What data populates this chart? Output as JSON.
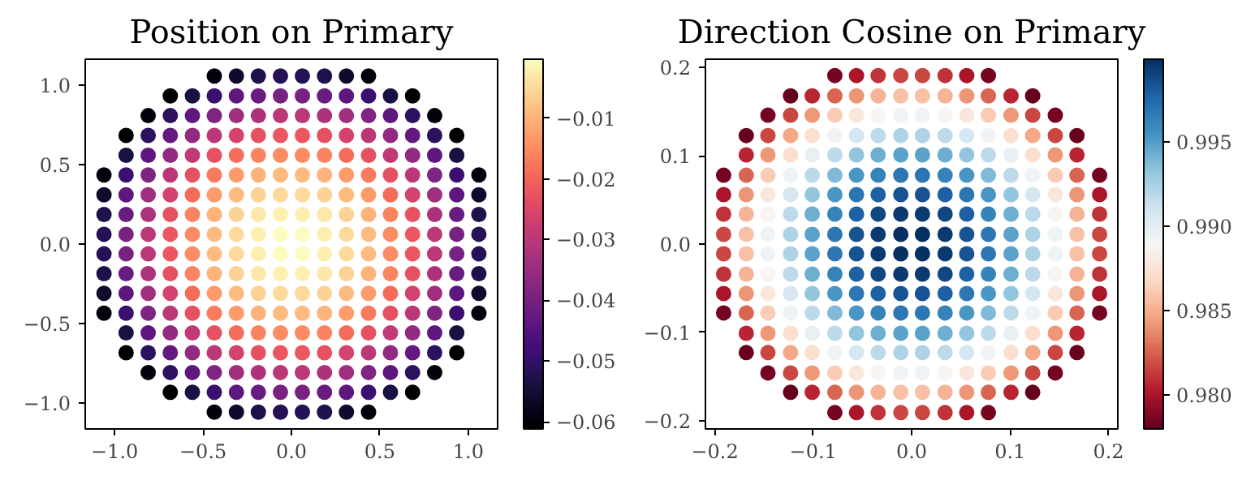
{
  "chart_data": [
    {
      "type": "scatter",
      "title": "Position on Primary",
      "marker": "circle",
      "xlim": [
        -1.166,
        1.166
      ],
      "ylim": [
        -1.166,
        1.166
      ],
      "xticks": [
        {
          "value": -1.0,
          "label": "−1.0"
        },
        {
          "value": -0.5,
          "label": "−0.5"
        },
        {
          "value": 0.0,
          "label": "0.0"
        },
        {
          "value": 0.5,
          "label": "0.5"
        },
        {
          "value": 1.0,
          "label": "1.0"
        }
      ],
      "yticks": [
        {
          "value": -1.0,
          "label": "−1.0"
        },
        {
          "value": -0.5,
          "label": "−0.5"
        },
        {
          "value": 0.0,
          "label": "0.0"
        },
        {
          "value": 0.5,
          "label": "0.5"
        },
        {
          "value": 1.0,
          "label": "1.0"
        }
      ],
      "clim": [
        -0.0612,
        -0.0003
      ],
      "cticks": [
        {
          "value": -0.06,
          "label": "−0.06"
        },
        {
          "value": -0.05,
          "label": "−0.05"
        },
        {
          "value": -0.04,
          "label": "−0.04"
        },
        {
          "value": -0.03,
          "label": "−0.03"
        },
        {
          "value": -0.02,
          "label": "−0.02"
        },
        {
          "value": -0.01,
          "label": "−0.01"
        }
      ],
      "x": [
        -0.436,
        -0.311,
        -0.187,
        -0.062,
        0.062,
        0.187,
        0.311,
        0.436,
        -0.685,
        -0.56,
        -0.436,
        -0.311,
        -0.187,
        -0.062,
        0.062,
        0.187,
        0.311,
        0.436,
        0.56,
        0.685,
        -0.81,
        -0.685,
        -0.56,
        -0.436,
        -0.311,
        -0.187,
        -0.062,
        0.062,
        0.187,
        0.311,
        0.436,
        0.56,
        0.685,
        0.81,
        -0.935,
        -0.81,
        -0.685,
        -0.56,
        -0.436,
        -0.311,
        -0.187,
        -0.062,
        0.062,
        0.187,
        0.311,
        0.436,
        0.56,
        0.685,
        0.81,
        0.935,
        -0.935,
        -0.81,
        -0.685,
        -0.56,
        -0.436,
        -0.311,
        -0.187,
        -0.062,
        0.062,
        0.187,
        0.311,
        0.436,
        0.56,
        0.685,
        0.81,
        0.935,
        -1.06,
        -0.935,
        -0.81,
        -0.685,
        -0.56,
        -0.436,
        -0.311,
        -0.187,
        -0.062,
        0.062,
        0.187,
        0.311,
        0.436,
        0.56,
        0.685,
        0.81,
        0.935,
        1.06,
        -1.06,
        -0.935,
        -0.81,
        -0.685,
        -0.56,
        -0.436,
        -0.311,
        -0.187,
        -0.062,
        0.062,
        0.187,
        0.311,
        0.436,
        0.56,
        0.685,
        0.81,
        0.935,
        1.06,
        -1.06,
        -0.935,
        -0.81,
        -0.685,
        -0.56,
        -0.436,
        -0.311,
        -0.187,
        -0.062,
        0.062,
        0.187,
        0.311,
        0.436,
        0.56,
        0.685,
        0.81,
        0.935,
        1.06,
        -1.06,
        -0.935,
        -0.81,
        -0.685,
        -0.56,
        -0.436,
        -0.311,
        -0.187,
        -0.062,
        0.062,
        0.187,
        0.311,
        0.436,
        0.56,
        0.685,
        0.81,
        0.935,
        1.06,
        -1.06,
        -0.935,
        -0.81,
        -0.685,
        -0.56,
        -0.436,
        -0.311,
        -0.187,
        -0.062,
        0.062,
        0.187,
        0.311,
        0.436,
        0.56,
        0.685,
        0.81,
        0.935,
        1.06,
        -1.06,
        -0.935,
        -0.81,
        -0.685,
        -0.56,
        -0.436,
        -0.311,
        -0.187,
        -0.062,
        0.062,
        0.187,
        0.311,
        0.436,
        0.56,
        0.685,
        0.81,
        0.935,
        1.06,
        -1.06,
        -0.935,
        -0.81,
        -0.685,
        -0.56,
        -0.436,
        -0.311,
        -0.187,
        -0.062,
        0.062,
        0.187,
        0.311,
        0.436,
        0.56,
        0.685,
        0.81,
        0.935,
        1.06,
        -1.06,
        -0.935,
        -0.81,
        -0.685,
        -0.56,
        -0.436,
        -0.311,
        -0.187,
        -0.062,
        0.062,
        0.187,
        0.311,
        0.436,
        0.56,
        0.685,
        0.81,
        0.935,
        1.06,
        -0.935,
        -0.81,
        -0.685,
        -0.56,
        -0.436,
        -0.311,
        -0.187,
        -0.062,
        0.062,
        0.187,
        0.311,
        0.436,
        0.56,
        0.685,
        0.81,
        0.935,
        -0.935,
        -0.81,
        -0.685,
        -0.56,
        -0.436,
        -0.311,
        -0.187,
        -0.062,
        0.062,
        0.187,
        0.311,
        0.436,
        0.56,
        0.685,
        0.81,
        0.935,
        -0.81,
        -0.685,
        -0.56,
        -0.436,
        -0.311,
        -0.187,
        -0.062,
        0.062,
        0.187,
        0.311,
        0.436,
        0.56,
        0.685,
        0.81,
        -0.685,
        -0.56,
        -0.436,
        -0.311,
        -0.187,
        -0.062,
        0.062,
        0.187,
        0.311,
        0.436,
        0.56,
        0.685,
        -0.436,
        -0.311,
        -0.187,
        -0.062,
        0.062,
        0.187,
        0.311,
        0.436
      ],
      "values": [
        1.06,
        1.06,
        1.06,
        1.06,
        1.06,
        1.06,
        1.06,
        1.06,
        0.935,
        0.935,
        0.935,
        0.935,
        0.935,
        0.935,
        0.935,
        0.935,
        0.935,
        0.935,
        0.935,
        0.935,
        0.81,
        0.81,
        0.81,
        0.81,
        0.81,
        0.81,
        0.81,
        0.81,
        0.81,
        0.81,
        0.81,
        0.81,
        0.81,
        0.81,
        0.685,
        0.685,
        0.685,
        0.685,
        0.685,
        0.685,
        0.685,
        0.685,
        0.685,
        0.685,
        0.685,
        0.685,
        0.685,
        0.685,
        0.685,
        0.685,
        0.56,
        0.56,
        0.56,
        0.56,
        0.56,
        0.56,
        0.56,
        0.56,
        0.56,
        0.56,
        0.56,
        0.56,
        0.56,
        0.56,
        0.56,
        0.56,
        0.436,
        0.436,
        0.436,
        0.436,
        0.436,
        0.436,
        0.436,
        0.436,
        0.436,
        0.436,
        0.436,
        0.436,
        0.436,
        0.436,
        0.436,
        0.436,
        0.436,
        0.436,
        0.311,
        0.311,
        0.311,
        0.311,
        0.311,
        0.311,
        0.311,
        0.311,
        0.311,
        0.311,
        0.311,
        0.311,
        0.311,
        0.311,
        0.311,
        0.311,
        0.311,
        0.311,
        0.187,
        0.187,
        0.187,
        0.187,
        0.187,
        0.187,
        0.187,
        0.187,
        0.187,
        0.187,
        0.187,
        0.187,
        0.187,
        0.187,
        0.187,
        0.187,
        0.187,
        0.187,
        0.062,
        0.062,
        0.062,
        0.062,
        0.062,
        0.062,
        0.062,
        0.062,
        0.062,
        0.062,
        0.062,
        0.062,
        0.062,
        0.062,
        0.062,
        0.062,
        0.062,
        0.062,
        -0.062,
        -0.062,
        -0.062,
        -0.062,
        -0.062,
        -0.062,
        -0.062,
        -0.062,
        -0.062,
        -0.062,
        -0.062,
        -0.062,
        -0.062,
        -0.062,
        -0.062,
        -0.062,
        -0.062,
        -0.062,
        -0.187,
        -0.187,
        -0.187,
        -0.187,
        -0.187,
        -0.187,
        -0.187,
        -0.187,
        -0.187,
        -0.187,
        -0.187,
        -0.187,
        -0.187,
        -0.187,
        -0.187,
        -0.187,
        -0.187,
        -0.187,
        -0.311,
        -0.311,
        -0.311,
        -0.311,
        -0.311,
        -0.311,
        -0.311,
        -0.311,
        -0.311,
        -0.311,
        -0.311,
        -0.311,
        -0.311,
        -0.311,
        -0.311,
        -0.311,
        -0.311,
        -0.311,
        -0.436,
        -0.436,
        -0.436,
        -0.436,
        -0.436,
        -0.436,
        -0.436,
        -0.436,
        -0.436,
        -0.436,
        -0.436,
        -0.436,
        -0.436,
        -0.436,
        -0.436,
        -0.436,
        -0.436,
        -0.436,
        -0.56,
        -0.56,
        -0.56,
        -0.56,
        -0.56,
        -0.56,
        -0.56,
        -0.56,
        -0.56,
        -0.56,
        -0.56,
        -0.56,
        -0.56,
        -0.56,
        -0.56,
        -0.56,
        -0.685,
        -0.685,
        -0.685,
        -0.685,
        -0.685,
        -0.685,
        -0.685,
        -0.685,
        -0.685,
        -0.685,
        -0.685,
        -0.685,
        -0.685,
        -0.685,
        -0.685,
        -0.685,
        -0.81,
        -0.81,
        -0.81,
        -0.81,
        -0.81,
        -0.81,
        -0.81,
        -0.81,
        -0.81,
        -0.81,
        -0.81,
        -0.81,
        -0.81,
        -0.81,
        -0.935,
        -0.935,
        -0.935,
        -0.935,
        -0.935,
        -0.935,
        -0.935,
        -0.935,
        -0.935,
        -0.935,
        -0.935,
        -0.935,
        -1.06,
        -1.06,
        -1.06,
        -1.06,
        -1.06,
        -1.06,
        -1.06,
        -1.06
      ],
      "cvalues": [
        -0.06,
        -0.056,
        -0.053,
        -0.052,
        -0.052,
        -0.053,
        -0.056,
        -0.06,
        -0.061,
        -0.054,
        -0.049,
        -0.044,
        -0.042,
        -0.04,
        -0.04,
        -0.042,
        -0.044,
        -0.049,
        -0.054,
        -0.061,
        -0.06,
        -0.051,
        -0.044,
        -0.039,
        -0.034,
        -0.032,
        -0.03,
        -0.03,
        -0.032,
        -0.034,
        -0.039,
        -0.044,
        -0.051,
        -0.06,
        -0.061,
        -0.051,
        -0.043,
        -0.036,
        -0.03,
        -0.026,
        -0.023,
        -0.022,
        -0.022,
        -0.023,
        -0.026,
        -0.03,
        -0.036,
        -0.043,
        -0.051,
        -0.061,
        -0.054,
        -0.044,
        -0.036,
        -0.029,
        -0.023,
        -0.019,
        -0.016,
        -0.015,
        -0.015,
        -0.016,
        -0.019,
        -0.023,
        -0.029,
        -0.036,
        -0.044,
        -0.054,
        -0.06,
        -0.049,
        -0.039,
        -0.03,
        -0.023,
        -0.017,
        -0.013,
        -0.01,
        -0.009,
        -0.009,
        -0.01,
        -0.013,
        -0.017,
        -0.023,
        -0.03,
        -0.039,
        -0.049,
        -0.06,
        -0.056,
        -0.044,
        -0.034,
        -0.026,
        -0.019,
        -0.013,
        -0.009,
        -0.006,
        -0.005,
        -0.005,
        -0.006,
        -0.009,
        -0.013,
        -0.019,
        -0.026,
        -0.034,
        -0.044,
        -0.056,
        -0.053,
        -0.042,
        -0.032,
        -0.023,
        -0.016,
        -0.01,
        -0.006,
        -0.003,
        -0.002,
        -0.002,
        -0.003,
        -0.006,
        -0.01,
        -0.016,
        -0.023,
        -0.032,
        -0.042,
        -0.053,
        -0.052,
        -0.04,
        -0.03,
        -0.022,
        -0.015,
        -0.009,
        -0.005,
        -0.002,
        -0.0003,
        -0.0003,
        -0.002,
        -0.005,
        -0.009,
        -0.015,
        -0.022,
        -0.03,
        -0.04,
        -0.052,
        -0.052,
        -0.04,
        -0.03,
        -0.022,
        -0.015,
        -0.009,
        -0.005,
        -0.002,
        -0.0003,
        -0.0003,
        -0.002,
        -0.005,
        -0.009,
        -0.015,
        -0.022,
        -0.03,
        -0.04,
        -0.052,
        -0.053,
        -0.042,
        -0.032,
        -0.023,
        -0.016,
        -0.01,
        -0.006,
        -0.003,
        -0.002,
        -0.002,
        -0.003,
        -0.006,
        -0.01,
        -0.016,
        -0.023,
        -0.032,
        -0.042,
        -0.053,
        -0.056,
        -0.044,
        -0.034,
        -0.026,
        -0.019,
        -0.013,
        -0.009,
        -0.006,
        -0.005,
        -0.005,
        -0.006,
        -0.009,
        -0.013,
        -0.019,
        -0.026,
        -0.034,
        -0.044,
        -0.056,
        -0.06,
        -0.049,
        -0.039,
        -0.03,
        -0.023,
        -0.017,
        -0.013,
        -0.01,
        -0.009,
        -0.009,
        -0.01,
        -0.013,
        -0.017,
        -0.023,
        -0.03,
        -0.039,
        -0.049,
        -0.06,
        -0.054,
        -0.044,
        -0.036,
        -0.029,
        -0.023,
        -0.019,
        -0.016,
        -0.015,
        -0.015,
        -0.016,
        -0.019,
        -0.023,
        -0.029,
        -0.036,
        -0.044,
        -0.054,
        -0.061,
        -0.051,
        -0.043,
        -0.036,
        -0.03,
        -0.026,
        -0.023,
        -0.022,
        -0.022,
        -0.023,
        -0.026,
        -0.03,
        -0.036,
        -0.043,
        -0.051,
        -0.061,
        -0.06,
        -0.051,
        -0.044,
        -0.039,
        -0.034,
        -0.032,
        -0.03,
        -0.03,
        -0.032,
        -0.034,
        -0.039,
        -0.044,
        -0.051,
        -0.06,
        -0.061,
        -0.054,
        -0.049,
        -0.044,
        -0.042,
        -0.04,
        -0.04,
        -0.042,
        -0.044,
        -0.049,
        -0.054,
        -0.061,
        -0.06,
        -0.056,
        -0.053,
        -0.052,
        -0.052,
        -0.053,
        -0.056,
        -0.06
      ]
    },
    {
      "type": "scatter",
      "title": "Direction Cosine on Primary",
      "marker": "circle",
      "xlim": [
        -0.2095,
        0.2095
      ],
      "ylim": [
        -0.2095,
        0.2095
      ],
      "xticks": [
        {
          "value": -0.2,
          "label": "−0.2"
        },
        {
          "value": -0.1,
          "label": "−0.1"
        },
        {
          "value": 0.0,
          "label": "0.0"
        },
        {
          "value": 0.1,
          "label": "0.1"
        },
        {
          "value": 0.2,
          "label": "0.2"
        }
      ],
      "yticks": [
        {
          "value": -0.2,
          "label": "−0.2"
        },
        {
          "value": -0.1,
          "label": "−0.1"
        },
        {
          "value": 0.0,
          "label": "0.0"
        },
        {
          "value": 0.1,
          "label": "0.1"
        },
        {
          "value": 0.2,
          "label": "0.2"
        }
      ],
      "clim": [
        0.978,
        0.9999
      ],
      "cticks": [
        {
          "value": 0.98,
          "label": "0.980"
        },
        {
          "value": 0.985,
          "label": "0.985"
        },
        {
          "value": 0.99,
          "label": "0.990"
        },
        {
          "value": 0.995,
          "label": "0.995"
        }
      ],
      "x": [
        -0.078,
        -0.056,
        -0.034,
        -0.011,
        0.011,
        0.034,
        0.056,
        0.078,
        -0.123,
        -0.101,
        -0.078,
        -0.056,
        -0.034,
        -0.011,
        0.011,
        0.034,
        0.056,
        0.078,
        0.101,
        0.123,
        -0.146,
        -0.123,
        -0.101,
        -0.078,
        -0.056,
        -0.034,
        -0.011,
        0.011,
        0.034,
        0.056,
        0.078,
        0.101,
        0.123,
        0.146,
        -0.168,
        -0.146,
        -0.123,
        -0.101,
        -0.078,
        -0.056,
        -0.034,
        -0.011,
        0.011,
        0.034,
        0.056,
        0.078,
        0.101,
        0.123,
        0.146,
        0.168,
        -0.168,
        -0.146,
        -0.123,
        -0.101,
        -0.078,
        -0.056,
        -0.034,
        -0.011,
        0.011,
        0.034,
        0.056,
        0.078,
        0.101,
        0.123,
        0.146,
        0.168,
        -0.191,
        -0.168,
        -0.146,
        -0.123,
        -0.101,
        -0.078,
        -0.056,
        -0.034,
        -0.011,
        0.011,
        0.034,
        0.056,
        0.078,
        0.101,
        0.123,
        0.146,
        0.168,
        0.191,
        -0.191,
        -0.168,
        -0.146,
        -0.123,
        -0.101,
        -0.078,
        -0.056,
        -0.034,
        -0.011,
        0.011,
        0.034,
        0.056,
        0.078,
        0.101,
        0.123,
        0.146,
        0.168,
        0.191,
        -0.191,
        -0.168,
        -0.146,
        -0.123,
        -0.101,
        -0.078,
        -0.056,
        -0.034,
        -0.011,
        0.011,
        0.034,
        0.056,
        0.078,
        0.101,
        0.123,
        0.146,
        0.168,
        0.191,
        -0.191,
        -0.168,
        -0.146,
        -0.123,
        -0.101,
        -0.078,
        -0.056,
        -0.034,
        -0.011,
        0.011,
        0.034,
        0.056,
        0.078,
        0.101,
        0.123,
        0.146,
        0.168,
        0.191,
        -0.191,
        -0.168,
        -0.146,
        -0.123,
        -0.101,
        -0.078,
        -0.056,
        -0.034,
        -0.011,
        0.011,
        0.034,
        0.056,
        0.078,
        0.101,
        0.123,
        0.146,
        0.168,
        0.191,
        -0.191,
        -0.168,
        -0.146,
        -0.123,
        -0.101,
        -0.078,
        -0.056,
        -0.034,
        -0.011,
        0.011,
        0.034,
        0.056,
        0.078,
        0.101,
        0.123,
        0.146,
        0.168,
        0.191,
        -0.191,
        -0.168,
        -0.146,
        -0.123,
        -0.101,
        -0.078,
        -0.056,
        -0.034,
        -0.011,
        0.011,
        0.034,
        0.056,
        0.078,
        0.101,
        0.123,
        0.146,
        0.168,
        0.191,
        -0.191,
        -0.168,
        -0.146,
        -0.123,
        -0.101,
        -0.078,
        -0.056,
        -0.034,
        -0.011,
        0.011,
        0.034,
        0.056,
        0.078,
        0.101,
        0.123,
        0.146,
        0.168,
        0.191,
        -0.168,
        -0.146,
        -0.123,
        -0.101,
        -0.078,
        -0.056,
        -0.034,
        -0.011,
        0.011,
        0.034,
        0.056,
        0.078,
        0.101,
        0.123,
        0.146,
        0.168,
        -0.168,
        -0.146,
        -0.123,
        -0.101,
        -0.078,
        -0.056,
        -0.034,
        -0.011,
        0.011,
        0.034,
        0.056,
        0.078,
        0.101,
        0.123,
        0.146,
        0.168,
        -0.146,
        -0.123,
        -0.101,
        -0.078,
        -0.056,
        -0.034,
        -0.011,
        0.011,
        0.034,
        0.056,
        0.078,
        0.101,
        0.123,
        0.146,
        -0.123,
        -0.101,
        -0.078,
        -0.056,
        -0.034,
        -0.011,
        0.011,
        0.034,
        0.056,
        0.078,
        0.101,
        0.123,
        -0.078,
        -0.056,
        -0.034,
        -0.011,
        0.011,
        0.034,
        0.056,
        0.078
      ],
      "values": [
        0.191,
        0.191,
        0.191,
        0.191,
        0.191,
        0.191,
        0.191,
        0.191,
        0.168,
        0.168,
        0.168,
        0.168,
        0.168,
        0.168,
        0.168,
        0.168,
        0.168,
        0.168,
        0.168,
        0.168,
        0.146,
        0.146,
        0.146,
        0.146,
        0.146,
        0.146,
        0.146,
        0.146,
        0.146,
        0.146,
        0.146,
        0.146,
        0.146,
        0.146,
        0.123,
        0.123,
        0.123,
        0.123,
        0.123,
        0.123,
        0.123,
        0.123,
        0.123,
        0.123,
        0.123,
        0.123,
        0.123,
        0.123,
        0.123,
        0.123,
        0.101,
        0.101,
        0.101,
        0.101,
        0.101,
        0.101,
        0.101,
        0.101,
        0.101,
        0.101,
        0.101,
        0.101,
        0.101,
        0.101,
        0.101,
        0.101,
        0.078,
        0.078,
        0.078,
        0.078,
        0.078,
        0.078,
        0.078,
        0.078,
        0.078,
        0.078,
        0.078,
        0.078,
        0.078,
        0.078,
        0.078,
        0.078,
        0.078,
        0.078,
        0.056,
        0.056,
        0.056,
        0.056,
        0.056,
        0.056,
        0.056,
        0.056,
        0.056,
        0.056,
        0.056,
        0.056,
        0.056,
        0.056,
        0.056,
        0.056,
        0.056,
        0.056,
        0.034,
        0.034,
        0.034,
        0.034,
        0.034,
        0.034,
        0.034,
        0.034,
        0.034,
        0.034,
        0.034,
        0.034,
        0.034,
        0.034,
        0.034,
        0.034,
        0.034,
        0.034,
        0.011,
        0.011,
        0.011,
        0.011,
        0.011,
        0.011,
        0.011,
        0.011,
        0.011,
        0.011,
        0.011,
        0.011,
        0.011,
        0.011,
        0.011,
        0.011,
        0.011,
        0.011,
        -0.011,
        -0.011,
        -0.011,
        -0.011,
        -0.011,
        -0.011,
        -0.011,
        -0.011,
        -0.011,
        -0.011,
        -0.011,
        -0.011,
        -0.011,
        -0.011,
        -0.011,
        -0.011,
        -0.011,
        -0.011,
        -0.034,
        -0.034,
        -0.034,
        -0.034,
        -0.034,
        -0.034,
        -0.034,
        -0.034,
        -0.034,
        -0.034,
        -0.034,
        -0.034,
        -0.034,
        -0.034,
        -0.034,
        -0.034,
        -0.034,
        -0.034,
        -0.056,
        -0.056,
        -0.056,
        -0.056,
        -0.056,
        -0.056,
        -0.056,
        -0.056,
        -0.056,
        -0.056,
        -0.056,
        -0.056,
        -0.056,
        -0.056,
        -0.056,
        -0.056,
        -0.056,
        -0.056,
        -0.078,
        -0.078,
        -0.078,
        -0.078,
        -0.078,
        -0.078,
        -0.078,
        -0.078,
        -0.078,
        -0.078,
        -0.078,
        -0.078,
        -0.078,
        -0.078,
        -0.078,
        -0.078,
        -0.078,
        -0.078,
        -0.101,
        -0.101,
        -0.101,
        -0.101,
        -0.101,
        -0.101,
        -0.101,
        -0.101,
        -0.101,
        -0.101,
        -0.101,
        -0.101,
        -0.101,
        -0.101,
        -0.101,
        -0.101,
        -0.123,
        -0.123,
        -0.123,
        -0.123,
        -0.123,
        -0.123,
        -0.123,
        -0.123,
        -0.123,
        -0.123,
        -0.123,
        -0.123,
        -0.123,
        -0.123,
        -0.123,
        -0.123,
        -0.146,
        -0.146,
        -0.146,
        -0.146,
        -0.146,
        -0.146,
        -0.146,
        -0.146,
        -0.146,
        -0.146,
        -0.146,
        -0.146,
        -0.146,
        -0.146,
        -0.168,
        -0.168,
        -0.168,
        -0.168,
        -0.168,
        -0.168,
        -0.168,
        -0.168,
        -0.168,
        -0.168,
        -0.168,
        -0.168,
        -0.191,
        -0.191,
        -0.191,
        -0.191,
        -0.191,
        -0.191,
        -0.191,
        -0.191
      ],
      "cvalues": [
        0.9785,
        0.98,
        0.981,
        0.9816,
        0.9816,
        0.981,
        0.98,
        0.9785,
        0.978,
        0.9806,
        0.9826,
        0.9841,
        0.9852,
        0.9857,
        0.9857,
        0.9852,
        0.9841,
        0.9826,
        0.9806,
        0.978,
        0.9785,
        0.9816,
        0.9842,
        0.9862,
        0.9877,
        0.9887,
        0.9893,
        0.9893,
        0.9887,
        0.9877,
        0.9862,
        0.9842,
        0.9816,
        0.9785,
        0.978,
        0.9816,
        0.9847,
        0.9872,
        0.9893,
        0.9908,
        0.9918,
        0.9923,
        0.9923,
        0.9918,
        0.9908,
        0.9893,
        0.9872,
        0.9847,
        0.9816,
        0.978,
        0.9806,
        0.9842,
        0.9872,
        0.9898,
        0.9918,
        0.9933,
        0.9943,
        0.9948,
        0.9948,
        0.9943,
        0.9933,
        0.9918,
        0.9898,
        0.9872,
        0.9842,
        0.9806,
        0.9785,
        0.9826,
        0.9862,
        0.9893,
        0.9918,
        0.9938,
        0.9953,
        0.9963,
        0.9969,
        0.9969,
        0.9963,
        0.9953,
        0.9938,
        0.9918,
        0.9893,
        0.9862,
        0.9826,
        0.9785,
        0.98,
        0.9841,
        0.9877,
        0.9908,
        0.9933,
        0.9953,
        0.9969,
        0.9979,
        0.9984,
        0.9984,
        0.9979,
        0.9969,
        0.9953,
        0.9933,
        0.9908,
        0.9877,
        0.9841,
        0.98,
        0.981,
        0.9852,
        0.9887,
        0.9918,
        0.9943,
        0.9963,
        0.9979,
        0.9989,
        0.9994,
        0.9994,
        0.9989,
        0.9979,
        0.9963,
        0.9943,
        0.9918,
        0.9887,
        0.9852,
        0.981,
        0.9816,
        0.9857,
        0.9893,
        0.9923,
        0.9948,
        0.9969,
        0.9984,
        0.9994,
        0.9999,
        0.9999,
        0.9994,
        0.9984,
        0.9969,
        0.9948,
        0.9923,
        0.9893,
        0.9857,
        0.9816,
        0.9816,
        0.9857,
        0.9893,
        0.9923,
        0.9948,
        0.9969,
        0.9984,
        0.9994,
        0.9999,
        0.9999,
        0.9994,
        0.9984,
        0.9969,
        0.9948,
        0.9923,
        0.9893,
        0.9857,
        0.9816,
        0.981,
        0.9852,
        0.9887,
        0.9918,
        0.9943,
        0.9963,
        0.9979,
        0.9989,
        0.9994,
        0.9994,
        0.9989,
        0.9979,
        0.9963,
        0.9943,
        0.9918,
        0.9887,
        0.9852,
        0.981,
        0.98,
        0.9841,
        0.9877,
        0.9908,
        0.9933,
        0.9953,
        0.9969,
        0.9979,
        0.9984,
        0.9984,
        0.9979,
        0.9969,
        0.9953,
        0.9933,
        0.9908,
        0.9877,
        0.9841,
        0.98,
        0.9785,
        0.9826,
        0.9862,
        0.9893,
        0.9918,
        0.9938,
        0.9953,
        0.9963,
        0.9969,
        0.9969,
        0.9963,
        0.9953,
        0.9938,
        0.9918,
        0.9893,
        0.9862,
        0.9826,
        0.9785,
        0.9806,
        0.9842,
        0.9872,
        0.9898,
        0.9918,
        0.9933,
        0.9943,
        0.9948,
        0.9948,
        0.9943,
        0.9933,
        0.9918,
        0.9898,
        0.9872,
        0.9842,
        0.9806,
        0.978,
        0.9816,
        0.9847,
        0.9872,
        0.9893,
        0.9908,
        0.9918,
        0.9923,
        0.9923,
        0.9918,
        0.9908,
        0.9893,
        0.9872,
        0.9847,
        0.9816,
        0.978,
        0.9785,
        0.9816,
        0.9842,
        0.9862,
        0.9877,
        0.9887,
        0.9893,
        0.9893,
        0.9887,
        0.9877,
        0.9862,
        0.9842,
        0.9816,
        0.9785,
        0.978,
        0.9806,
        0.9826,
        0.9841,
        0.9852,
        0.9857,
        0.9857,
        0.9852,
        0.9841,
        0.9826,
        0.9806,
        0.978,
        0.9785,
        0.98,
        0.981,
        0.9816,
        0.9816,
        0.981,
        0.98,
        0.9785
      ]
    }
  ]
}
